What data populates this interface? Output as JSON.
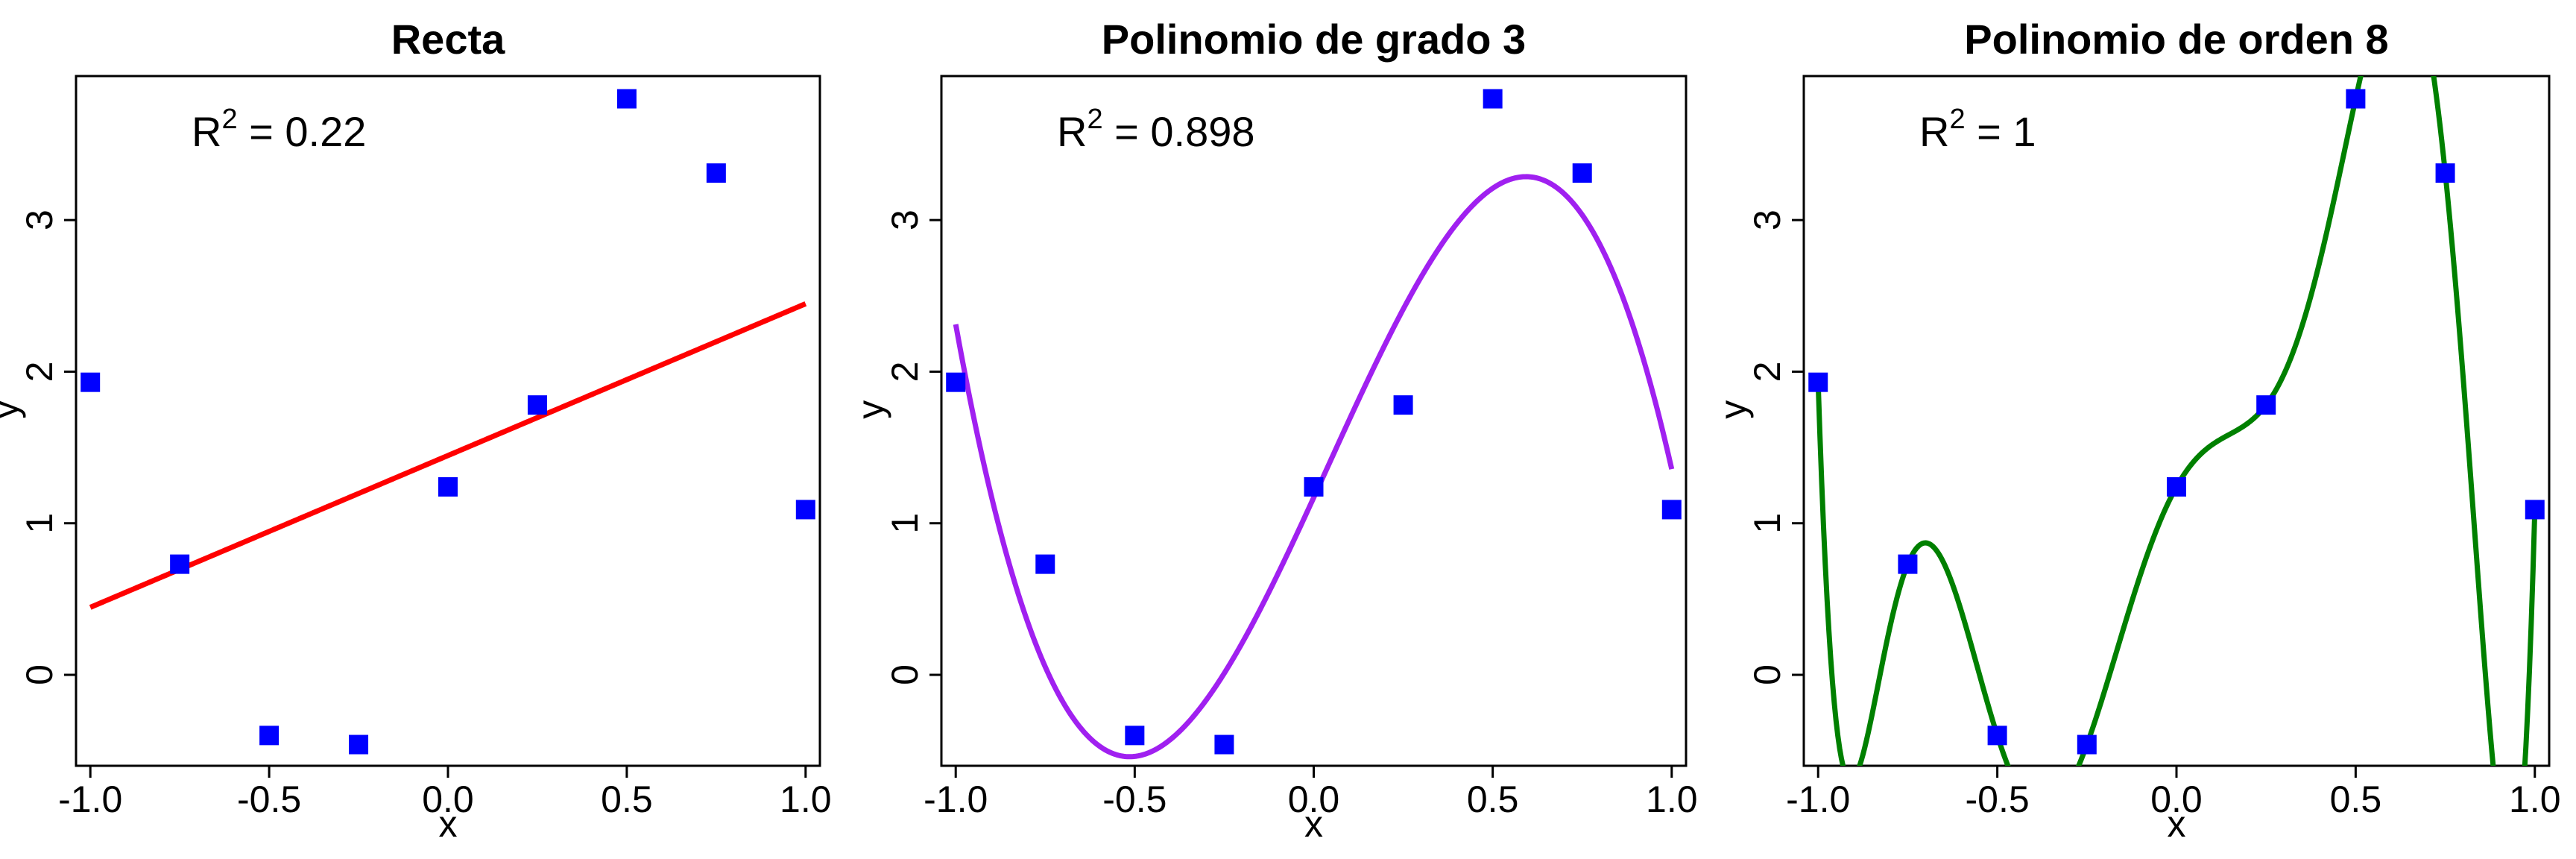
{
  "chart_data": [
    {
      "type": "scatter",
      "title": "Recta",
      "xlabel": "x",
      "ylabel": "y",
      "xlim": [
        -1.04,
        1.04
      ],
      "ylim": [
        -0.6,
        3.95
      ],
      "xticks": [
        -1.0,
        -0.5,
        0.0,
        0.5,
        1.0
      ],
      "xtick_labels": [
        "-1.0",
        "-0.5",
        "0.0",
        "0.5",
        "1.0"
      ],
      "yticks": [
        0,
        1,
        2,
        3
      ],
      "ytick_labels": [
        "0",
        "1",
        "2",
        "3"
      ],
      "points": {
        "x": [
          -1.0,
          -0.75,
          -0.5,
          -0.25,
          0.0,
          0.25,
          0.5,
          0.75,
          1.0
        ],
        "y": [
          1.93,
          0.73,
          -0.4,
          -0.46,
          1.24,
          1.78,
          3.8,
          3.31,
          1.09
        ],
        "color": "#0000ff"
      },
      "fit": {
        "degree": 1,
        "color": "#ff0000"
      },
      "r2_label": {
        "base": "R",
        "sup": "2",
        "text": " = 0.22"
      }
    },
    {
      "type": "scatter",
      "title": "Polinomio de grado 3",
      "xlabel": "x",
      "ylabel": "y",
      "xlim": [
        -1.04,
        1.04
      ],
      "ylim": [
        -0.6,
        3.95
      ],
      "xticks": [
        -1.0,
        -0.5,
        0.0,
        0.5,
        1.0
      ],
      "xtick_labels": [
        "-1.0",
        "-0.5",
        "0.0",
        "0.5",
        "1.0"
      ],
      "yticks": [
        0,
        1,
        2,
        3
      ],
      "ytick_labels": [
        "0",
        "1",
        "2",
        "3"
      ],
      "points": {
        "x": [
          -1.0,
          -0.75,
          -0.5,
          -0.25,
          0.0,
          0.25,
          0.5,
          0.75,
          1.0
        ],
        "y": [
          1.93,
          0.73,
          -0.4,
          -0.46,
          1.24,
          1.78,
          3.8,
          3.31,
          1.09
        ],
        "color": "#0000ff"
      },
      "fit": {
        "degree": 3,
        "color": "#a020f0"
      },
      "r2_label": {
        "base": "R",
        "sup": "2",
        "text": " = 0.898"
      }
    },
    {
      "type": "scatter",
      "title": "Polinomio de orden 8",
      "xlabel": "x",
      "ylabel": "y",
      "xlim": [
        -1.04,
        1.04
      ],
      "ylim": [
        -0.6,
        3.95
      ],
      "xticks": [
        -1.0,
        -0.5,
        0.0,
        0.5,
        1.0
      ],
      "xtick_labels": [
        "-1.0",
        "-0.5",
        "0.0",
        "0.5",
        "1.0"
      ],
      "yticks": [
        0,
        1,
        2,
        3
      ],
      "ytick_labels": [
        "0",
        "1",
        "2",
        "3"
      ],
      "points": {
        "x": [
          -1.0,
          -0.75,
          -0.5,
          -0.25,
          0.0,
          0.25,
          0.5,
          0.75,
          1.0
        ],
        "y": [
          1.93,
          0.73,
          -0.4,
          -0.46,
          1.24,
          1.78,
          3.8,
          3.31,
          1.09
        ],
        "color": "#0000ff"
      },
      "fit": {
        "degree": 8,
        "color": "#008000"
      },
      "r2_label": {
        "base": "R",
        "sup": "2",
        "text": " = 1"
      }
    }
  ]
}
